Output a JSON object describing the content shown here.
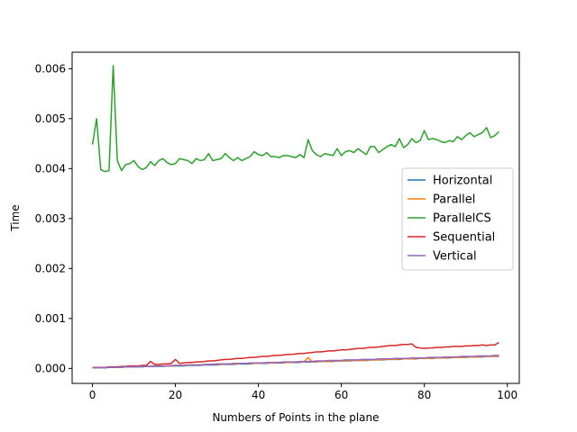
{
  "chart_data": {
    "type": "line",
    "title": "",
    "xlabel": "Numbers of Points in the plane",
    "ylabel": "Time",
    "xlim": [
      -4.9,
      102.9
    ],
    "ylim": [
      -0.0003,
      0.00633
    ],
    "x_ticks": [
      0,
      20,
      40,
      60,
      80,
      100
    ],
    "x_tick_labels": [
      "0",
      "20",
      "40",
      "60",
      "80",
      "100"
    ],
    "y_ticks": [
      0.0,
      0.001,
      0.002,
      0.003,
      0.004,
      0.005,
      0.006
    ],
    "y_tick_labels": [
      "0.000",
      "0.001",
      "0.002",
      "0.003",
      "0.004",
      "0.005",
      "0.006"
    ],
    "grid": false,
    "legend_position": "center-right",
    "x": {
      "start": 0,
      "end": 98,
      "step": 1
    },
    "series": [
      {
        "name": "Horizontal",
        "color": "#1f77b4",
        "values": [
          2e-05,
          1e-05,
          1e-05,
          1e-05,
          2e-05,
          2e-05,
          2e-05,
          2e-05,
          3e-05,
          3e-05,
          3e-05,
          3e-05,
          3e-05,
          4e-05,
          4e-05,
          4e-05,
          4e-05,
          4e-05,
          5e-05,
          5e-05,
          5e-05,
          5e-05,
          5e-05,
          6e-05,
          6e-05,
          6e-05,
          6e-05,
          7e-05,
          7e-05,
          7e-05,
          7e-05,
          8e-05,
          8e-05,
          8e-05,
          8e-05,
          9e-05,
          9e-05,
          9e-05,
          9e-05,
          0.0001,
          0.0001,
          0.0001,
          0.0001,
          0.00011,
          0.00011,
          0.00011,
          0.00011,
          0.00012,
          0.00012,
          0.00012,
          0.00012,
          0.00013,
          0.00013,
          0.00013,
          0.00013,
          0.00014,
          0.00014,
          0.00014,
          0.00014,
          0.00015,
          0.00015,
          0.00015,
          0.00015,
          0.00016,
          0.00016,
          0.00016,
          0.00016,
          0.00017,
          0.00017,
          0.00017,
          0.00017,
          0.00018,
          0.00018,
          0.00018,
          0.00018,
          0.00019,
          0.00019,
          0.00019,
          0.00019,
          0.0002,
          0.0002,
          0.0002,
          0.0002,
          0.00021,
          0.00021,
          0.00021,
          0.00021,
          0.00022,
          0.00022,
          0.00022,
          0.00022,
          0.00023,
          0.00023,
          0.00023,
          0.00023,
          0.00024,
          0.00024,
          0.00024,
          0.00024
        ]
      },
      {
        "name": "Parallel",
        "color": "#ff7f0e",
        "values": [
          1e-05,
          1e-05,
          1e-05,
          2e-05,
          2e-05,
          2e-05,
          2e-05,
          3e-05,
          3e-05,
          3e-05,
          3e-05,
          4e-05,
          4e-05,
          4e-05,
          4e-05,
          5e-05,
          5e-05,
          5e-05,
          5e-05,
          5e-05,
          6e-05,
          6e-05,
          6e-05,
          6e-05,
          7e-05,
          7e-05,
          7e-05,
          7e-05,
          8e-05,
          8e-05,
          8e-05,
          8e-05,
          9e-05,
          9e-05,
          9e-05,
          9e-05,
          0.0001,
          0.0001,
          0.0001,
          0.0001,
          0.0001,
          0.00011,
          0.00011,
          0.00011,
          0.00011,
          0.00012,
          0.00012,
          0.00012,
          0.00012,
          0.00013,
          0.00013,
          0.00013,
          0.00022,
          0.00013,
          0.00014,
          0.00014,
          0.00014,
          0.00014,
          0.00015,
          0.00015,
          0.00015,
          0.00015,
          0.00016,
          0.00016,
          0.00016,
          0.00016,
          0.00017,
          0.00017,
          0.00017,
          0.00017,
          0.00018,
          0.00018,
          0.00018,
          0.00018,
          0.00019,
          0.00019,
          0.00019,
          0.00019,
          0.0002,
          0.0002,
          0.0002,
          0.0002,
          0.00021,
          0.00021,
          0.00021,
          0.00021,
          0.00022,
          0.00022,
          0.00022,
          0.00022,
          0.00023,
          0.00023,
          0.00023,
          0.00023,
          0.00024,
          0.00024,
          0.00024,
          0.00024,
          0.00025
        ]
      },
      {
        "name": "ParallelCS",
        "color": "#2ca02c",
        "values": [
          0.00448,
          0.005,
          0.00398,
          0.00394,
          0.00396,
          0.00606,
          0.00416,
          0.00396,
          0.00408,
          0.0041,
          0.00416,
          0.00404,
          0.00398,
          0.00402,
          0.00414,
          0.00406,
          0.00416,
          0.0042,
          0.00412,
          0.00408,
          0.0041,
          0.0042,
          0.00418,
          0.00416,
          0.0041,
          0.0042,
          0.00416,
          0.00418,
          0.0043,
          0.00416,
          0.00418,
          0.0042,
          0.0043,
          0.00422,
          0.00416,
          0.00422,
          0.00416,
          0.0042,
          0.00424,
          0.00434,
          0.00428,
          0.00426,
          0.00432,
          0.00424,
          0.00424,
          0.00422,
          0.00426,
          0.00426,
          0.00424,
          0.00422,
          0.00428,
          0.00422,
          0.00458,
          0.00436,
          0.00428,
          0.00424,
          0.0043,
          0.00428,
          0.00426,
          0.0044,
          0.00426,
          0.00434,
          0.00436,
          0.00432,
          0.0044,
          0.00434,
          0.00428,
          0.00444,
          0.00444,
          0.00432,
          0.00438,
          0.00444,
          0.00448,
          0.00444,
          0.0046,
          0.00442,
          0.00448,
          0.0046,
          0.00452,
          0.00456,
          0.00476,
          0.00458,
          0.0046,
          0.00458,
          0.00454,
          0.00452,
          0.00456,
          0.00454,
          0.00464,
          0.00458,
          0.00466,
          0.00472,
          0.00464,
          0.00468,
          0.00472,
          0.00482,
          0.00462,
          0.00466,
          0.00474
        ]
      },
      {
        "name": "Sequential",
        "color": "#d62728",
        "values": [
          2e-05,
          2e-05,
          2e-05,
          2e-05,
          3e-05,
          3e-05,
          3e-05,
          4e-05,
          4e-05,
          5e-05,
          5e-05,
          5e-05,
          6e-05,
          6e-05,
          0.00014,
          8e-05,
          8e-05,
          9e-05,
          9e-05,
          0.0001,
          0.00018,
          0.0001,
          0.00011,
          0.00012,
          0.00012,
          0.00013,
          0.00013,
          0.00014,
          0.00015,
          0.00015,
          0.00016,
          0.00017,
          0.00018,
          0.00018,
          0.00019,
          0.0002,
          0.0002,
          0.00021,
          0.00022,
          0.00022,
          0.00023,
          0.00024,
          0.00024,
          0.00025,
          0.00026,
          0.00026,
          0.00027,
          0.00028,
          0.00028,
          0.00029,
          0.0003,
          0.0003,
          0.00031,
          0.00032,
          0.00033,
          0.00033,
          0.00034,
          0.00035,
          0.00035,
          0.00036,
          0.00037,
          0.00037,
          0.00038,
          0.00039,
          0.0004,
          0.0004,
          0.00041,
          0.00042,
          0.00042,
          0.00043,
          0.00044,
          0.00045,
          0.00046,
          0.00046,
          0.00047,
          0.00048,
          0.00048,
          0.00049,
          0.00042,
          0.00041,
          0.0004,
          0.00041,
          0.00041,
          0.00042,
          0.00042,
          0.00043,
          0.00043,
          0.00044,
          0.00044,
          0.00044,
          0.00045,
          0.00045,
          0.00046,
          0.00046,
          0.00047,
          0.00046,
          0.00047,
          0.00047,
          0.00052
        ]
      },
      {
        "name": "Vertical",
        "color": "#9467bd",
        "values": [
          2e-05,
          1e-05,
          1e-05,
          2e-05,
          2e-05,
          2e-05,
          2e-05,
          3e-05,
          3e-05,
          3e-05,
          3e-05,
          4e-05,
          4e-05,
          4e-05,
          4e-05,
          5e-05,
          5e-05,
          5e-05,
          5e-05,
          6e-05,
          6e-05,
          6e-05,
          6e-05,
          7e-05,
          7e-05,
          7e-05,
          7e-05,
          8e-05,
          8e-05,
          8e-05,
          9e-05,
          9e-05,
          9e-05,
          9e-05,
          0.0001,
          0.0001,
          0.0001,
          0.0001,
          0.00011,
          0.00011,
          0.00011,
          0.00011,
          0.00012,
          0.00012,
          0.00012,
          0.00012,
          0.00013,
          0.00013,
          0.00013,
          0.00013,
          0.00014,
          0.00014,
          0.00014,
          0.00014,
          0.00015,
          0.00015,
          0.00015,
          0.00016,
          0.00016,
          0.00016,
          0.00016,
          0.00017,
          0.00017,
          0.00017,
          0.00017,
          0.00018,
          0.00018,
          0.00018,
          0.00018,
          0.00019,
          0.00019,
          0.00019,
          0.00019,
          0.0002,
          0.0002,
          0.0002,
          0.0002,
          0.00021,
          0.00021,
          0.00021,
          0.00021,
          0.00022,
          0.00022,
          0.00022,
          0.00022,
          0.00023,
          0.00023,
          0.00023,
          0.00023,
          0.00024,
          0.00024,
          0.00024,
          0.00024,
          0.00025,
          0.00025,
          0.00025,
          0.00025,
          0.00026,
          0.00026
        ]
      }
    ]
  }
}
